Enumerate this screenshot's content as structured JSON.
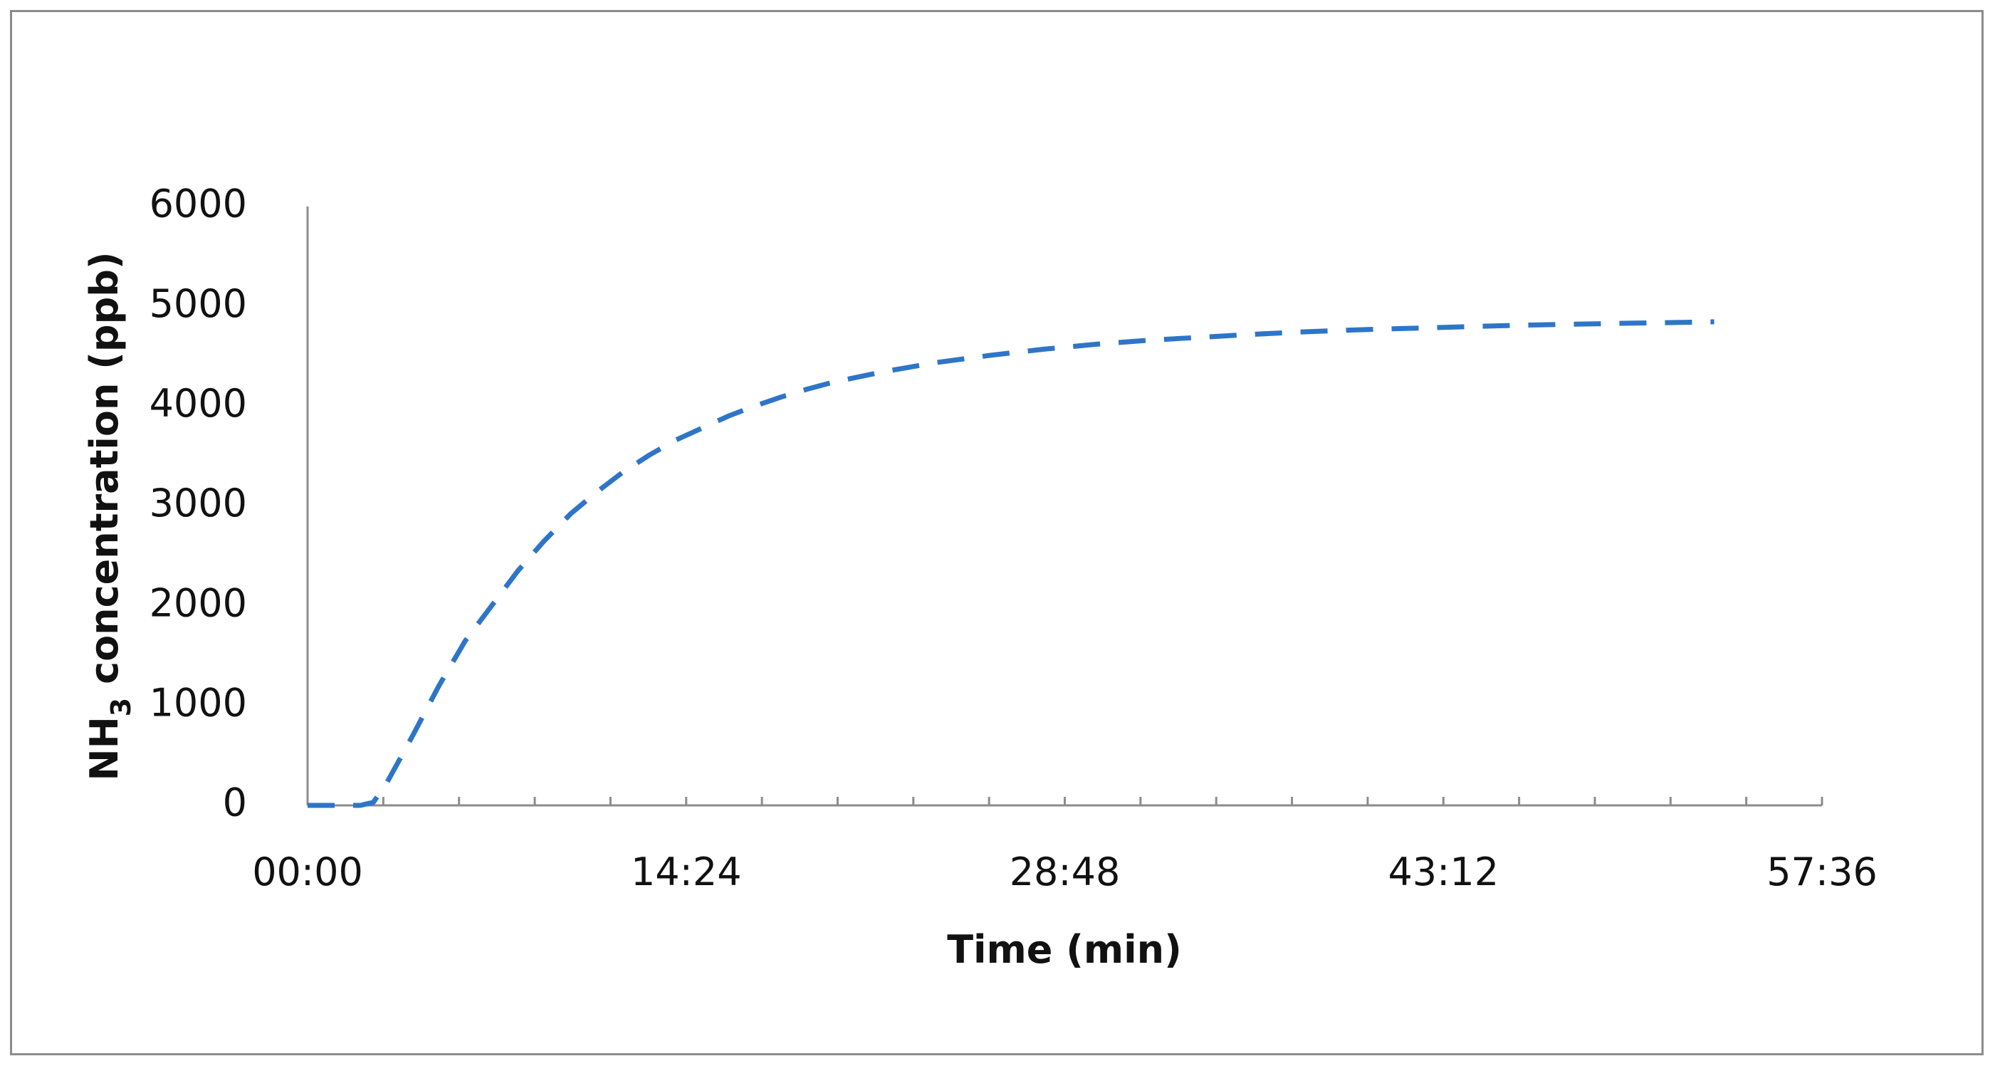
{
  "chart_data": {
    "type": "line",
    "title": "",
    "xlabel": "Time (min)",
    "ylabel": {
      "main": "NH",
      "subscript": "3",
      "rest": " concentration (ppb)"
    },
    "x_tick_labels": [
      "00:00",
      "14:24",
      "28:48",
      "43:12",
      "57:36"
    ],
    "x_tick_minutes": [
      0,
      14.4,
      28.8,
      43.2,
      57.6
    ],
    "y_tick_labels": [
      "0",
      "1000",
      "2000",
      "3000",
      "4000",
      "5000",
      "6000"
    ],
    "y_ticks": [
      0,
      1000,
      2000,
      3000,
      4000,
      5000,
      6000
    ],
    "xlim": [
      0,
      57.6
    ],
    "ylim": [
      0,
      6000
    ],
    "x_minor_ticks": 20,
    "grid": false,
    "legend": "none",
    "colors": {
      "series": "#2e75c8",
      "axis": "#8c8c8c",
      "text": "#111111"
    },
    "series": [
      {
        "style": "dashed",
        "x": [
          0,
          1,
          2,
          2.5,
          3,
          4,
          5,
          6,
          7,
          8,
          9,
          10,
          11,
          12,
          13,
          14,
          15,
          16,
          17,
          18,
          19,
          20,
          22,
          24,
          26,
          28,
          30,
          32,
          34,
          36,
          38,
          40,
          42,
          44,
          46,
          48,
          50,
          52,
          53.5
        ],
        "values": [
          0,
          0,
          0,
          30,
          220,
          700,
          1200,
          1650,
          2000,
          2350,
          2650,
          2920,
          3140,
          3340,
          3510,
          3660,
          3780,
          3900,
          4000,
          4090,
          4170,
          4240,
          4350,
          4440,
          4510,
          4570,
          4620,
          4660,
          4690,
          4720,
          4745,
          4765,
          4780,
          4795,
          4810,
          4820,
          4830,
          4838,
          4845
        ]
      }
    ]
  }
}
